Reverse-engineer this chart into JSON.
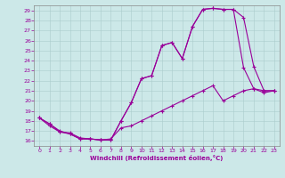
{
  "xlabel": "Windchill (Refroidissement éolien,°C)",
  "line_color": "#990099",
  "bg_color": "#cce8e8",
  "xlim": [
    -0.5,
    23.5
  ],
  "ylim": [
    15.5,
    29.5
  ],
  "xticks": [
    0,
    1,
    2,
    3,
    4,
    5,
    6,
    7,
    8,
    9,
    10,
    11,
    12,
    13,
    14,
    15,
    16,
    17,
    18,
    19,
    20,
    21,
    22,
    23
  ],
  "yticks": [
    16,
    17,
    18,
    19,
    20,
    21,
    22,
    23,
    24,
    25,
    26,
    27,
    28,
    29
  ],
  "line1_x": [
    0,
    1,
    2,
    3,
    4,
    5,
    6,
    7,
    8,
    9,
    10,
    11,
    12,
    13,
    14,
    15,
    16,
    17,
    18,
    19,
    20,
    21,
    22,
    23
  ],
  "line1_y": [
    18.3,
    17.7,
    17.0,
    16.7,
    16.2,
    16.2,
    16.1,
    16.1,
    18.0,
    19.8,
    22.2,
    22.5,
    25.5,
    25.8,
    24.2,
    27.4,
    29.1,
    29.2,
    29.1,
    29.1,
    23.3,
    21.2,
    20.8,
    21.0
  ],
  "line2_x": [
    0,
    1,
    2,
    3,
    4,
    5,
    6,
    7,
    8,
    9,
    10,
    11,
    12,
    13,
    14,
    15,
    16,
    17,
    18,
    19,
    20,
    21,
    22,
    23
  ],
  "line2_y": [
    18.3,
    17.7,
    16.9,
    16.7,
    16.2,
    16.2,
    16.1,
    16.1,
    18.0,
    19.8,
    22.2,
    22.5,
    25.5,
    25.8,
    24.2,
    27.4,
    29.1,
    29.2,
    29.1,
    29.1,
    28.3,
    23.4,
    21.0,
    21.0
  ],
  "line3_x": [
    0,
    1,
    2,
    3,
    4,
    5,
    6,
    7,
    8,
    9,
    10,
    11,
    12,
    13,
    14,
    15,
    16,
    17,
    18,
    19,
    20,
    21,
    22,
    23
  ],
  "line3_y": [
    18.3,
    17.5,
    16.9,
    16.8,
    16.3,
    16.2,
    16.1,
    16.2,
    17.3,
    17.5,
    18.0,
    18.5,
    19.0,
    19.5,
    20.0,
    20.5,
    21.0,
    21.5,
    20.0,
    20.5,
    21.0,
    21.2,
    21.0,
    21.0
  ]
}
